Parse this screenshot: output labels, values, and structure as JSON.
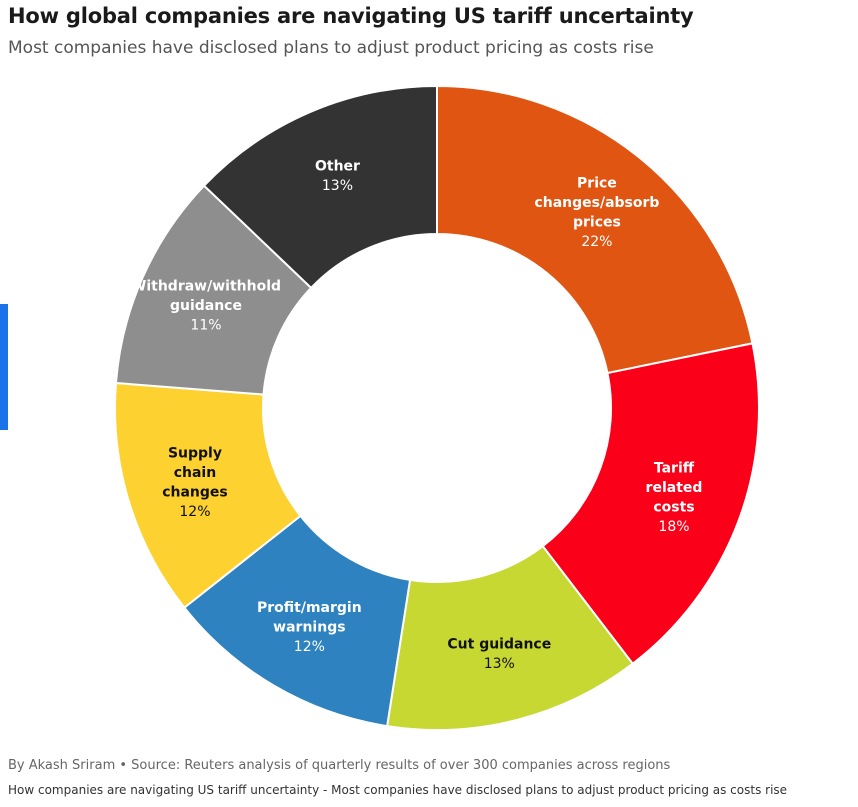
{
  "header": {
    "title": "How global companies are navigating US tariff uncertainty",
    "subtitle": "Most companies have disclosed plans to adjust product pricing as costs rise"
  },
  "footer": {
    "source": "By Akash Sriram • Source: Reuters analysis of quarterly results of over 300 companies across regions",
    "caption": "How companies are navigating US tariff uncertainty - Most companies have disclosed plans to adjust product pricing as costs rise"
  },
  "chart_data": {
    "type": "pie",
    "donut": true,
    "title": "How global companies are navigating US tariff uncertainty",
    "subtitle": "Most companies have disclosed plans to adjust product pricing as costs rise",
    "unit": "%",
    "slices": [
      {
        "label": "Price changes/absorb prices",
        "lines": [
          "Price",
          "changes/absorb",
          "prices"
        ],
        "value": 22,
        "display": "22%",
        "color": "#e05512",
        "text_color": "#ffffff"
      },
      {
        "label": "Tariff related costs",
        "lines": [
          "Tariff",
          "related",
          "costs"
        ],
        "value": 18,
        "display": "18%",
        "color": "#fa0019",
        "text_color": "#ffffff"
      },
      {
        "label": "Cut guidance",
        "lines": [
          "Cut guidance"
        ],
        "value": 13,
        "display": "13%",
        "color": "#c8d832",
        "text_color": "#111111"
      },
      {
        "label": "Profit/margin warnings",
        "lines": [
          "Profit/margin",
          "warnings"
        ],
        "value": 12,
        "display": "12%",
        "color": "#2d82bf",
        "text_color": "#ffffff"
      },
      {
        "label": "Supply chain changes",
        "lines": [
          "Supply",
          "chain",
          "changes"
        ],
        "value": 12,
        "display": "12%",
        "color": "#fdd130",
        "text_color": "#111111"
      },
      {
        "label": "Withdraw/withhold guidance",
        "lines": [
          "Withdraw/withhold",
          "guidance"
        ],
        "value": 11,
        "display": "11%",
        "color": "#8e8e8e",
        "text_color": "#ffffff"
      },
      {
        "label": "Other",
        "lines": [
          "Other"
        ],
        "value": 13,
        "display": "13%",
        "color": "#333333",
        "text_color": "#ffffff"
      }
    ]
  }
}
